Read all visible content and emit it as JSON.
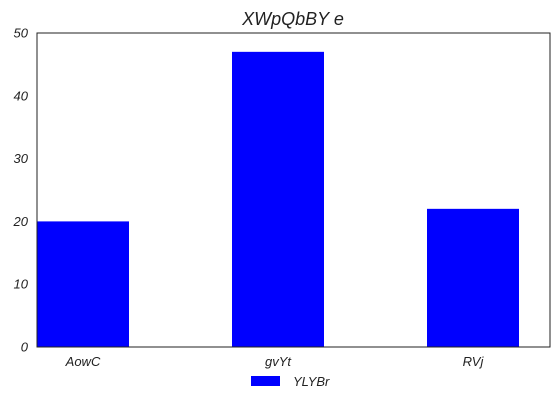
{
  "chart_data": {
    "type": "bar",
    "title": "XWpQbBY e",
    "xlabel": "",
    "ylabel": "",
    "categories": [
      "AowC",
      "gvYt",
      "RVj"
    ],
    "series": [
      {
        "name": "YLYBr",
        "values": [
          20,
          47,
          22
        ],
        "color": "#0000ff"
      }
    ],
    "ylim": [
      0,
      50
    ],
    "yticks": [
      0,
      10,
      20,
      30,
      40,
      50
    ],
    "grid": false,
    "legend_position": "bottom-center"
  }
}
